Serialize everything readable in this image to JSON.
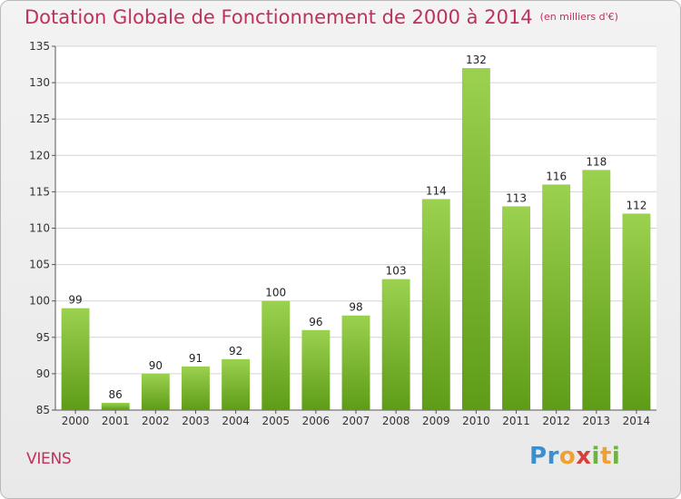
{
  "header": {
    "title": "Dotation Globale de Fonctionnement de 2000 à 2014",
    "unit": "(en milliers d'€)"
  },
  "footer": {
    "town": "VIENS",
    "logo": "Proxiti"
  },
  "colors": {
    "accent": "#c0305a",
    "bar_top": "#9bd14f",
    "bar_bottom": "#5e9c17"
  },
  "chart_data": {
    "type": "bar",
    "title": "Dotation Globale de Fonctionnement de 2000 à 2014",
    "subtitle": "(en milliers d'€)",
    "categories": [
      "2000",
      "2001",
      "2002",
      "2003",
      "2004",
      "2005",
      "2006",
      "2007",
      "2008",
      "2009",
      "2010",
      "2011",
      "2012",
      "2013",
      "2014"
    ],
    "values": [
      99,
      86,
      90,
      91,
      92,
      100,
      96,
      98,
      103,
      114,
      132,
      113,
      116,
      118,
      112
    ],
    "ylim": [
      85,
      135
    ],
    "yticks": [
      85,
      90,
      95,
      100,
      105,
      110,
      115,
      120,
      125,
      130,
      135
    ],
    "grid": true,
    "legend": "none"
  }
}
